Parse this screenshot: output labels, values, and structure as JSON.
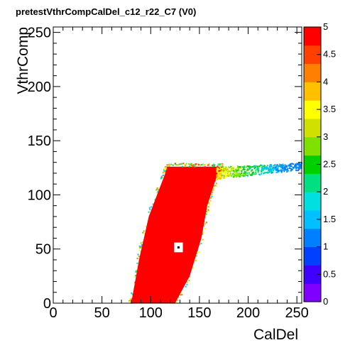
{
  "chart_data": {
    "type": "heatmap",
    "title": "pretestVthrCompCalDel_c12_r22_C7 (V0)",
    "xlabel": "CalDel",
    "ylabel": "VthrComp",
    "xlim": [
      0,
      255
    ],
    "ylim": [
      0,
      255
    ],
    "x_ticks": [
      0,
      50,
      100,
      150,
      200,
      250
    ],
    "y_ticks": [
      0,
      50,
      100,
      150,
      200,
      250
    ],
    "z_range": [
      0,
      5
    ],
    "z_ticks": [
      "0",
      "0.5",
      "1",
      "1.5",
      "2",
      "2.5",
      "3",
      "3.5",
      "4",
      "4.5",
      "5"
    ],
    "colorbar_colors": [
      "#7f00ff",
      "#4000ff",
      "#0040ff",
      "#0080ff",
      "#00c0ff",
      "#00e0e0",
      "#00e080",
      "#00d000",
      "#80e000",
      "#d0e000",
      "#ffff00",
      "#ffc000",
      "#ff8000",
      "#ff4000",
      "#ff0000"
    ],
    "regions": [
      {
        "shape": "band",
        "value": 5,
        "left_edge": [
          [
            80,
            0
          ],
          [
            88,
            40
          ],
          [
            98,
            80
          ],
          [
            115,
            120
          ],
          [
            117,
            126
          ]
        ],
        "right_edge": [
          [
            125,
            0
          ],
          [
            140,
            25
          ],
          [
            152,
            60
          ],
          [
            158,
            90
          ],
          [
            167,
            115
          ],
          [
            175,
            126
          ]
        ]
      },
      {
        "shape": "tail",
        "value": 2.5,
        "x": [
          168,
          255
        ],
        "y": [
          120,
          131
        ]
      },
      {
        "shape": "hole",
        "value": 0,
        "x": [
          124,
          133
        ],
        "y": [
          47,
          56
        ]
      }
    ],
    "grid": false,
    "legend": "none"
  }
}
